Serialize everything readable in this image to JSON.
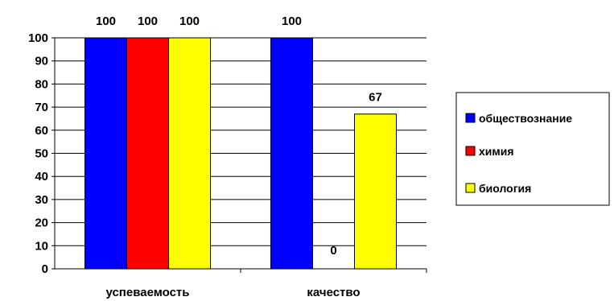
{
  "chart_data": {
    "type": "bar",
    "categories": [
      "успеваемость",
      "качество"
    ],
    "series": [
      {
        "name": "обществознание",
        "values": [
          100,
          100
        ],
        "color": "#0000ff"
      },
      {
        "name": "химия",
        "values": [
          100,
          0
        ],
        "color": "#ff0000"
      },
      {
        "name": "биология",
        "values": [
          100,
          67
        ],
        "color": "#ffff00"
      }
    ],
    "ylim": [
      0,
      100
    ],
    "yticks": [
      "0",
      "10",
      "20",
      "30",
      "40",
      "50",
      "60",
      "70",
      "80",
      "90",
      "100"
    ],
    "grid": true,
    "legend_position": "right",
    "colors": {
      "bar_border": "#000000",
      "grid": "#000000",
      "legend_border": "#000000"
    }
  }
}
